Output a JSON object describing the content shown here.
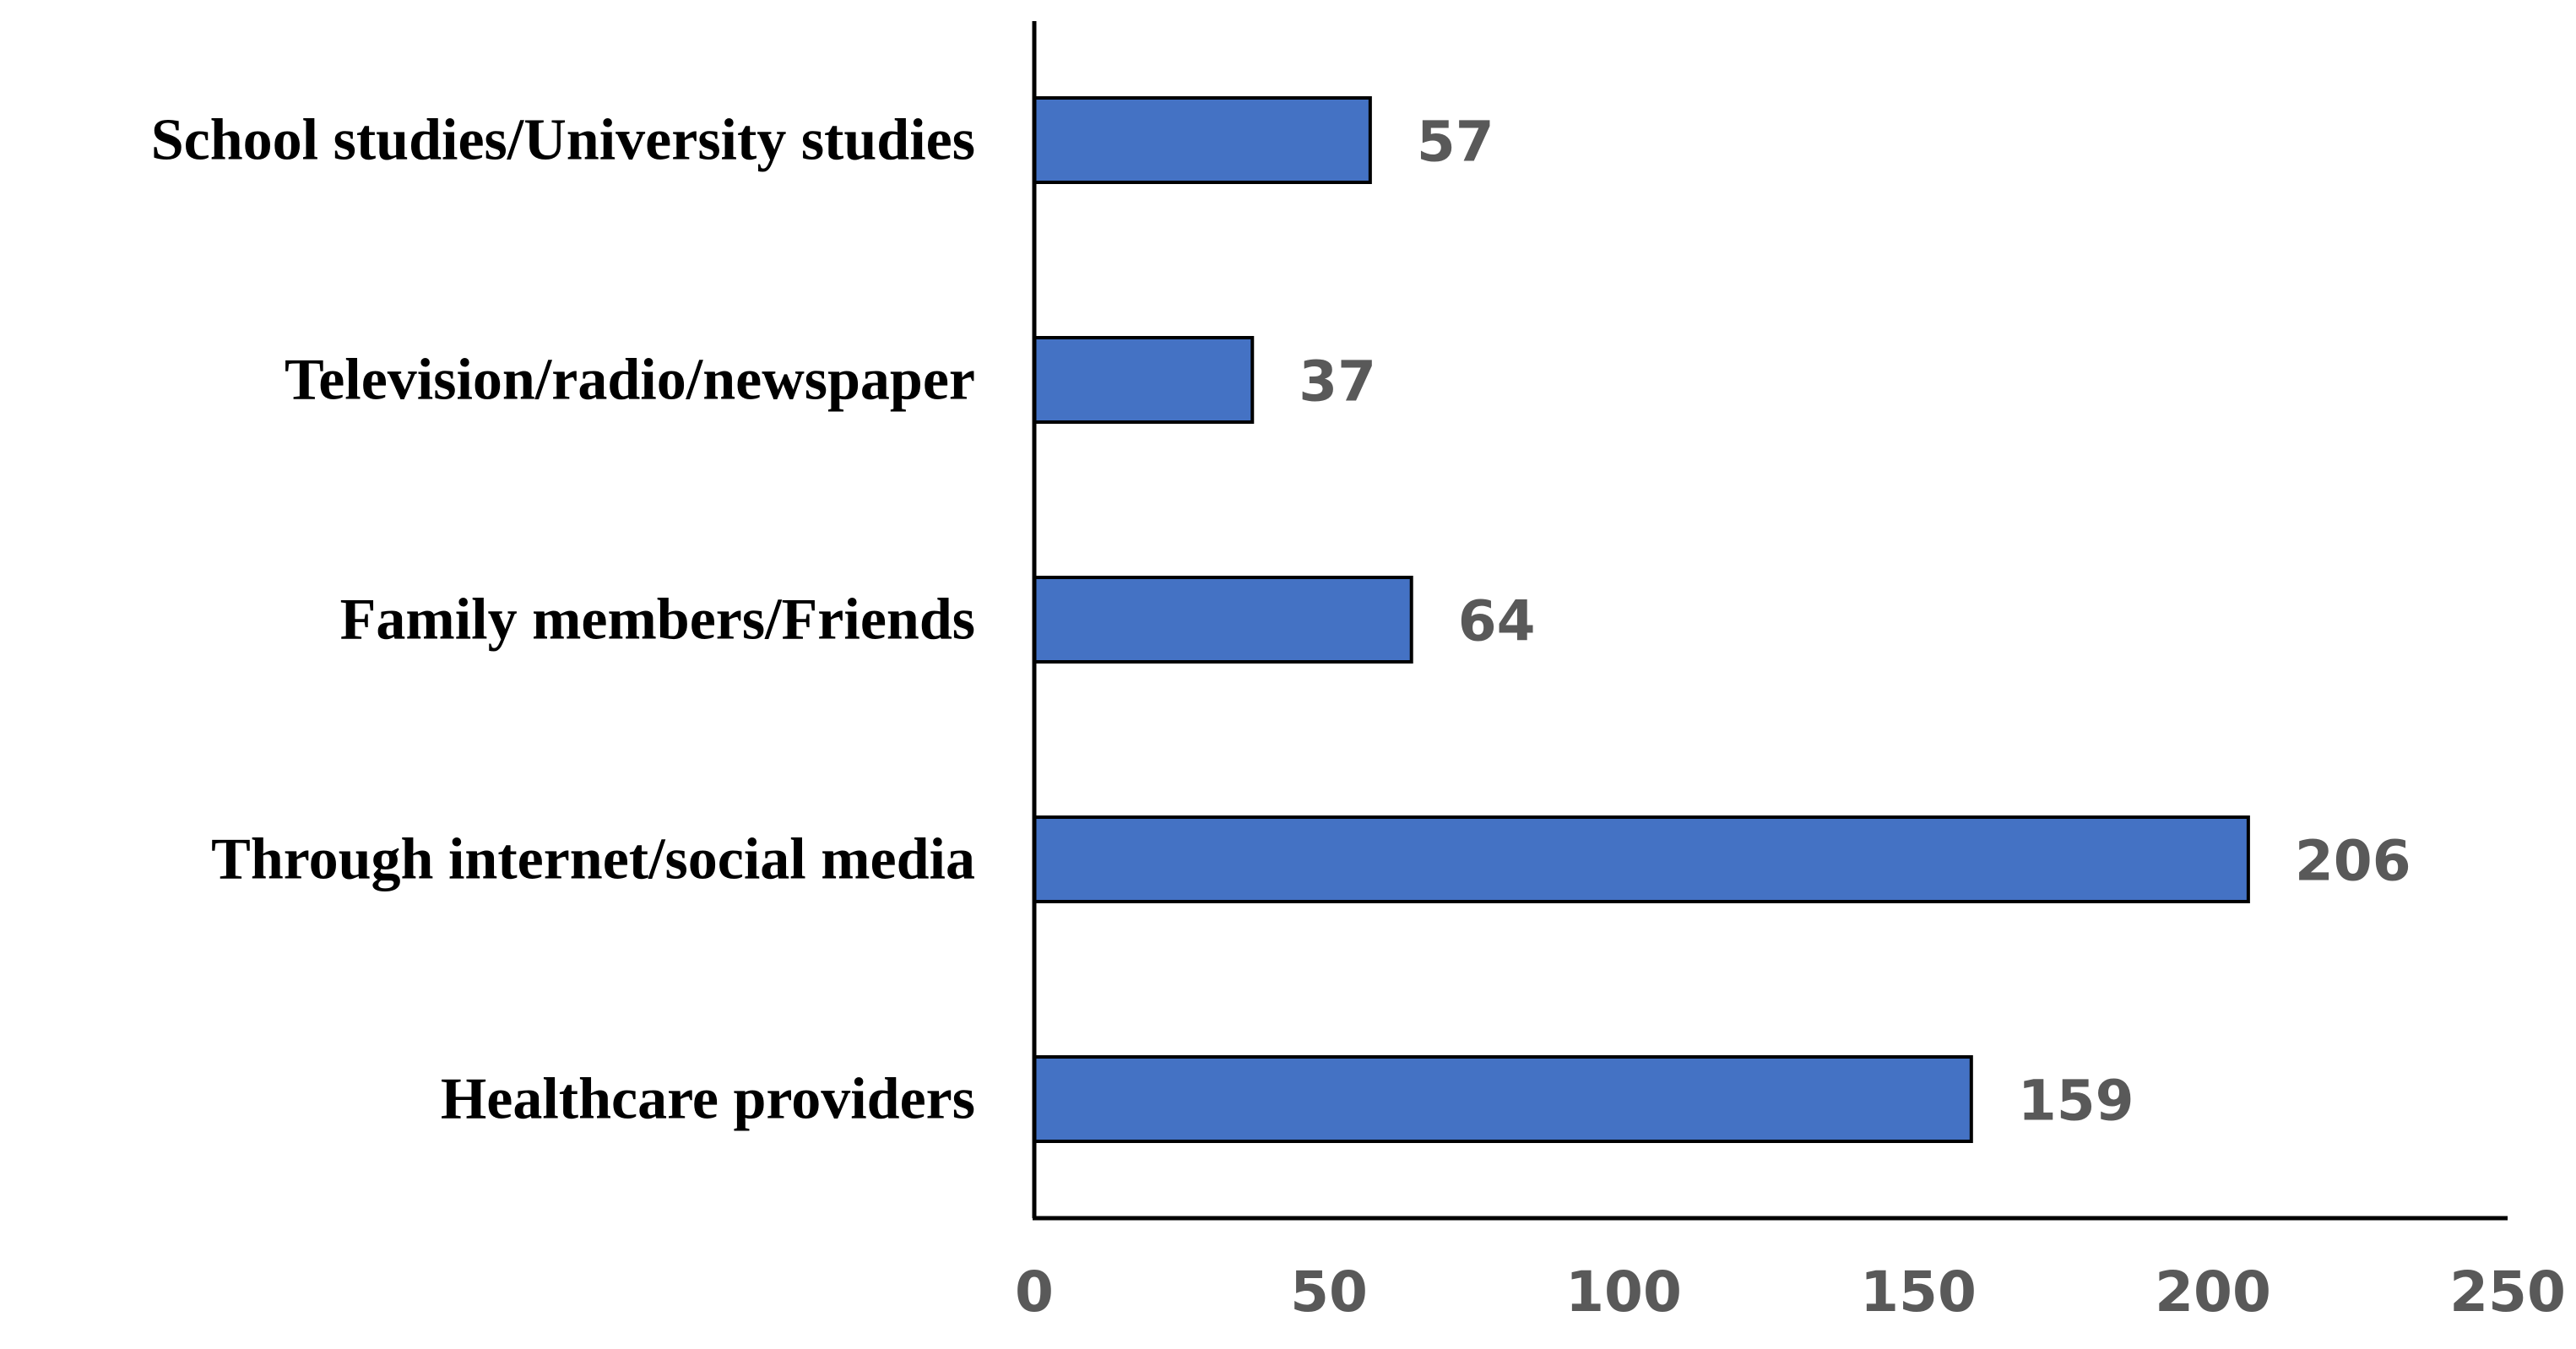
{
  "chart_data": {
    "type": "bar",
    "orientation": "horizontal",
    "title": "",
    "xlabel": "",
    "ylabel": "",
    "categories": [
      "School studies/University studies",
      "Television/radio/newspaper",
      "Family members/Friends",
      "Through internet/social media",
      "Healthcare providers"
    ],
    "values": [
      57,
      37,
      64,
      206,
      159
    ],
    "data_labels": [
      "57",
      "37",
      "64",
      "206",
      "159"
    ],
    "xlim": [
      0,
      250
    ],
    "x_ticks": [
      0,
      50,
      100,
      150,
      200,
      250
    ],
    "x_tick_labels": [
      "0",
      "50",
      "100",
      "150",
      "200",
      "250"
    ],
    "grid": false,
    "legend": "none",
    "colors": {
      "bar_fill": "#4472C4",
      "bar_stroke": "#000000",
      "axis": "#000000",
      "value_label": "#595959",
      "category_label": "#000000",
      "tick_label": "#595959"
    }
  }
}
